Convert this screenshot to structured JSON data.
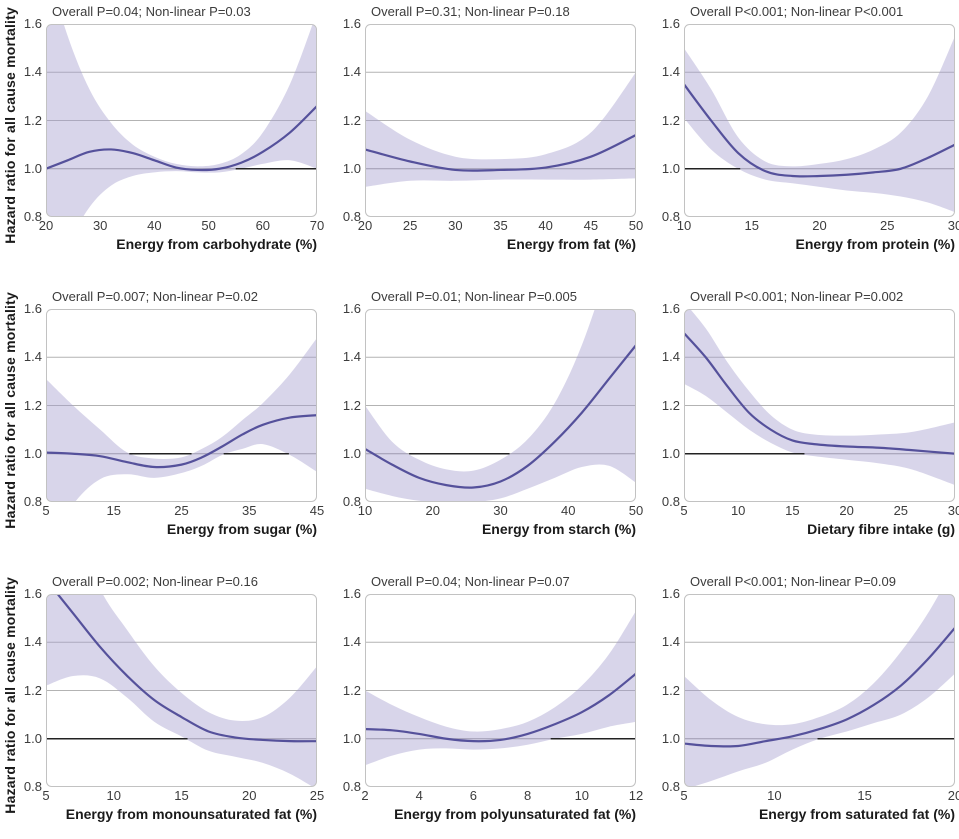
{
  "figure": {
    "ylabel": "Hazard ratio for all cause mortality"
  },
  "style": {
    "curve_color": "#55519b",
    "band_color": "#a29ace",
    "band_opacity": 0.42,
    "grid_color": "#b3b3b3",
    "ref_gray_color": "#9a9a9a",
    "ref_black_color": "#222222",
    "border_color": "#c2c2c2",
    "plot_bg": "#ffffff"
  },
  "axis": {
    "ylim": [
      0.8,
      1.6
    ],
    "yticks": [
      1.6,
      1.4,
      1.2,
      1.0,
      0.8
    ],
    "ytick_labels": [
      "1.6",
      "1.4",
      "1.2",
      "1.0",
      "0.8"
    ],
    "gridlines_at": [
      1.4,
      1.2
    ],
    "reference_at": 1.0
  },
  "chart_data": [
    {
      "type": "line",
      "id": "carbohydrate",
      "title": "Overall P=0.04; Non-linear P=0.03",
      "xlabel": "Energy from carbohydrate (%)",
      "ylabel": "Hazard ratio for all cause mortality",
      "xmin": 20,
      "xmax": 70,
      "xticks": [
        20,
        30,
        40,
        50,
        60,
        70
      ],
      "ylim": [
        0.8,
        1.6
      ],
      "x": [
        20,
        24,
        28,
        32,
        36,
        40,
        44,
        48,
        52,
        56,
        60,
        65,
        70
      ],
      "y": [
        1.0,
        1.035,
        1.07,
        1.08,
        1.065,
        1.035,
        1.005,
        0.995,
        1.0,
        1.025,
        1.07,
        1.15,
        1.26
      ],
      "ci_upper": [
        1.85,
        1.55,
        1.33,
        1.19,
        1.1,
        1.05,
        1.02,
        1.01,
        1.02,
        1.06,
        1.15,
        1.35,
        1.65
      ],
      "ci_lower": [
        0.45,
        0.68,
        0.84,
        0.93,
        0.97,
        0.985,
        0.99,
        0.985,
        0.985,
        1.0,
        1.02,
        1.035,
        1.0
      ]
    },
    {
      "type": "line",
      "id": "fat",
      "title": "Overall P=0.31; Non-linear P=0.18",
      "xlabel": "Energy from fat (%)",
      "ylabel": "Hazard ratio for all cause mortality",
      "xmin": 20,
      "xmax": 50,
      "xticks": [
        20,
        25,
        30,
        35,
        40,
        45,
        50
      ],
      "ylim": [
        0.8,
        1.6
      ],
      "x": [
        20,
        25,
        30,
        35,
        40,
        45,
        50
      ],
      "y": [
        1.08,
        1.03,
        0.995,
        0.995,
        1.005,
        1.05,
        1.14
      ],
      "ci_upper": [
        1.24,
        1.12,
        1.05,
        1.04,
        1.06,
        1.15,
        1.4
      ],
      "ci_lower": [
        0.925,
        0.95,
        0.95,
        0.955,
        0.955,
        0.955,
        0.96
      ]
    },
    {
      "type": "line",
      "id": "protein",
      "title": "Overall P<0.001; Non-linear P<0.001",
      "xlabel": "Energy from protein (%)",
      "ylabel": "Hazard ratio for all cause mortality",
      "xmin": 10,
      "xmax": 30,
      "xticks": [
        10,
        15,
        20,
        25,
        30
      ],
      "ylim": [
        0.8,
        1.6
      ],
      "x": [
        10,
        12,
        14,
        16,
        18,
        20,
        22,
        24,
        26,
        28,
        30
      ],
      "y": [
        1.35,
        1.2,
        1.065,
        0.99,
        0.97,
        0.97,
        0.975,
        0.985,
        1.0,
        1.045,
        1.1
      ],
      "ci_upper": [
        1.5,
        1.33,
        1.13,
        1.03,
        1.01,
        1.02,
        1.04,
        1.08,
        1.15,
        1.3,
        1.55
      ],
      "ci_lower": [
        1.21,
        1.08,
        1.0,
        0.955,
        0.94,
        0.925,
        0.91,
        0.9,
        0.885,
        0.86,
        0.82
      ]
    },
    {
      "type": "line",
      "id": "sugar",
      "title": "Overall P=0.007; Non-linear P=0.02",
      "xlabel": "Energy from sugar (%)",
      "ylabel": "Hazard ratio for all cause mortality",
      "xmin": 5,
      "xmax": 45,
      "xticks": [
        5,
        15,
        25,
        35,
        45
      ],
      "ylim": [
        0.8,
        1.6
      ],
      "x": [
        5,
        9,
        13,
        17,
        21,
        25,
        28,
        31,
        34,
        37,
        41,
        45
      ],
      "y": [
        1.005,
        1.0,
        0.99,
        0.965,
        0.945,
        0.955,
        0.985,
        1.03,
        1.08,
        1.12,
        1.15,
        1.16
      ],
      "ci_upper": [
        1.31,
        1.2,
        1.1,
        1.005,
        0.98,
        0.985,
        1.02,
        1.07,
        1.14,
        1.21,
        1.33,
        1.48
      ],
      "ci_lower": [
        0.6,
        0.79,
        0.895,
        0.915,
        0.9,
        0.92,
        0.95,
        0.995,
        1.02,
        1.04,
        0.995,
        0.925
      ]
    },
    {
      "type": "line",
      "id": "starch",
      "title": "Overall P=0.01; Non-linear P=0.005",
      "xlabel": "Energy from starch (%)",
      "ylabel": "Hazard ratio for all cause mortality",
      "xmin": 10,
      "xmax": 50,
      "xticks": [
        10,
        20,
        30,
        40,
        50
      ],
      "ylim": [
        0.8,
        1.6
      ],
      "x": [
        10,
        14,
        18,
        22,
        26,
        30,
        34,
        38,
        42,
        46,
        50
      ],
      "y": [
        1.02,
        0.955,
        0.9,
        0.87,
        0.86,
        0.885,
        0.95,
        1.05,
        1.17,
        1.31,
        1.45
      ],
      "ci_upper": [
        1.2,
        1.05,
        0.975,
        0.935,
        0.93,
        0.975,
        1.06,
        1.21,
        1.45,
        1.78,
        2.15
      ],
      "ci_lower": [
        0.855,
        0.825,
        0.805,
        0.8,
        0.8,
        0.815,
        0.855,
        0.9,
        0.945,
        0.95,
        0.88
      ]
    },
    {
      "type": "line",
      "id": "fibre",
      "title": "Overall P<0.001; Non-linear P=0.002",
      "xlabel": "Dietary fibre intake (g)",
      "ylabel": "Hazard ratio for all cause mortality",
      "xmin": 5,
      "xmax": 30,
      "xticks": [
        5,
        10,
        15,
        20,
        25,
        30
      ],
      "ylim": [
        0.8,
        1.6
      ],
      "x": [
        5,
        7,
        9,
        11,
        13,
        15,
        17,
        20,
        23,
        26,
        30
      ],
      "y": [
        1.5,
        1.4,
        1.28,
        1.17,
        1.1,
        1.055,
        1.04,
        1.03,
        1.025,
        1.015,
        1.0
      ],
      "ci_upper": [
        1.63,
        1.52,
        1.38,
        1.26,
        1.16,
        1.1,
        1.08,
        1.075,
        1.08,
        1.09,
        1.13
      ],
      "ci_lower": [
        1.29,
        1.24,
        1.17,
        1.1,
        1.045,
        1.005,
        0.99,
        0.975,
        0.96,
        0.935,
        0.87
      ]
    },
    {
      "type": "line",
      "id": "monounsaturated-fat",
      "title": "Overall P=0.002; Non-linear P=0.16",
      "xlabel": "Energy from monounsaturated fat (%)",
      "ylabel": "Hazard ratio for all cause mortality",
      "xmin": 5,
      "xmax": 25,
      "xticks": [
        5,
        10,
        15,
        20,
        25
      ],
      "ylim": [
        0.8,
        1.6
      ],
      "x": [
        5,
        7,
        9,
        11,
        13,
        15,
        17,
        19,
        21,
        23,
        25
      ],
      "y": [
        1.66,
        1.52,
        1.38,
        1.26,
        1.16,
        1.09,
        1.03,
        1.005,
        0.995,
        0.99,
        0.99
      ],
      "ci_upper": [
        2.2,
        1.9,
        1.62,
        1.45,
        1.3,
        1.19,
        1.11,
        1.075,
        1.09,
        1.17,
        1.3
      ],
      "ci_lower": [
        1.22,
        1.26,
        1.25,
        1.17,
        1.07,
        1.01,
        0.95,
        0.925,
        0.9,
        0.855,
        0.79
      ]
    },
    {
      "type": "line",
      "id": "polyunsaturated-fat",
      "title": "Overall P=0.04; Non-linear P=0.07",
      "xlabel": "Energy from polyunsaturated fat (%)",
      "ylabel": "Hazard ratio for all cause mortality",
      "xmin": 2,
      "xmax": 12,
      "xticks": [
        2,
        4,
        6,
        8,
        10,
        12
      ],
      "ylim": [
        0.8,
        1.6
      ],
      "x": [
        2,
        3,
        4,
        5,
        6,
        7,
        8,
        9,
        10,
        11,
        12
      ],
      "y": [
        1.04,
        1.035,
        1.02,
        1.0,
        0.99,
        0.995,
        1.02,
        1.06,
        1.11,
        1.18,
        1.27
      ],
      "ci_upper": [
        1.2,
        1.14,
        1.09,
        1.05,
        1.03,
        1.04,
        1.07,
        1.13,
        1.22,
        1.35,
        1.53
      ],
      "ci_lower": [
        0.89,
        0.93,
        0.955,
        0.96,
        0.955,
        0.96,
        0.975,
        1.0,
        1.02,
        1.05,
        1.07
      ]
    },
    {
      "type": "line",
      "id": "saturated-fat",
      "title": "Overall P<0.001; Non-linear P=0.09",
      "xlabel": "Energy from saturated fat (%)",
      "ylabel": "Hazard ratio for all cause mortality",
      "xmin": 5,
      "xmax": 20,
      "xticks": [
        5,
        10,
        15,
        20
      ],
      "ylim": [
        0.8,
        1.6
      ],
      "x": [
        5,
        6.5,
        8,
        9.5,
        11,
        12.5,
        14,
        15.5,
        17,
        18.5,
        20
      ],
      "y": [
        0.98,
        0.97,
        0.97,
        0.99,
        1.01,
        1.04,
        1.08,
        1.14,
        1.22,
        1.33,
        1.46
      ],
      "ci_upper": [
        1.26,
        1.16,
        1.09,
        1.06,
        1.06,
        1.09,
        1.14,
        1.23,
        1.36,
        1.52,
        1.72
      ],
      "ci_lower": [
        0.79,
        0.825,
        0.865,
        0.9,
        0.955,
        1.0,
        1.03,
        1.065,
        1.1,
        1.17,
        1.27
      ]
    }
  ]
}
